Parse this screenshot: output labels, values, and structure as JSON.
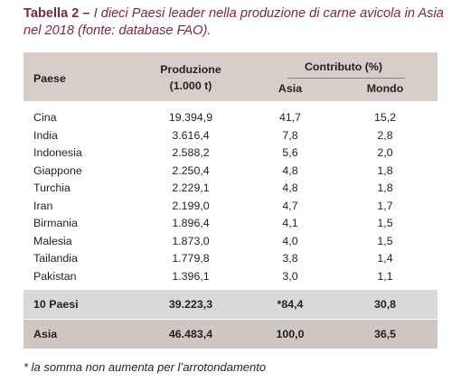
{
  "caption": {
    "lead": "Tabella 2 –",
    "text": " I dieci Paesi leader nella produzione di carne avicola in Asia nel 2018 (fonte: database FAO)."
  },
  "table": {
    "headers": {
      "paese": "Paese",
      "produzione_line1": "Produzione",
      "produzione_line2": "(1.000 t)",
      "contributo": "Contributo (%)",
      "asia": "Asia",
      "mondo": "Mondo"
    },
    "rows": [
      {
        "paese": "Cina",
        "produzione": "19.394,9",
        "asia": "41,7",
        "mondo": "15,2"
      },
      {
        "paese": "India",
        "produzione": "3.616,4",
        "asia": "7,8",
        "mondo": "2,8"
      },
      {
        "paese": "Indonesia",
        "produzione": "2.588,2",
        "asia": "5,6",
        "mondo": "2,0"
      },
      {
        "paese": "Giappone",
        "produzione": "2.250,4",
        "asia": "4,8",
        "mondo": "1,8"
      },
      {
        "paese": "Turchia",
        "produzione": "2.229,1",
        "asia": "4,8",
        "mondo": "1,8"
      },
      {
        "paese": "Iran",
        "produzione": "2.199,0",
        "asia": "4,7",
        "mondo": "1,7"
      },
      {
        "paese": "Birmania",
        "produzione": "1.896,4",
        "asia": "4,1",
        "mondo": "1,5"
      },
      {
        "paese": "Malesia",
        "produzione": "1.873,0",
        "asia": "4,0",
        "mondo": "1,5"
      },
      {
        "paese": "Tailandia",
        "produzione": "1.779,8",
        "asia": "3,8",
        "mondo": "1,4"
      },
      {
        "paese": "Pakistan",
        "produzione": "1.396,1",
        "asia": "3,0",
        "mondo": "1,1"
      }
    ],
    "totals": [
      {
        "paese": "10 Paesi",
        "produzione": "39.223,3",
        "asia": "*84,4",
        "mondo": "30,8"
      },
      {
        "paese": "Asia",
        "produzione": "46.483,4",
        "asia": "100,0",
        "mondo": "36,5"
      }
    ]
  },
  "footnote": "* la somma non aumenta per l’arrotondamento",
  "colors": {
    "caption": "#7a2a3a",
    "header_bg": "#d6cfc9",
    "total_bg": "#d9d9d9",
    "asia_bg": "#cfc7c1"
  }
}
